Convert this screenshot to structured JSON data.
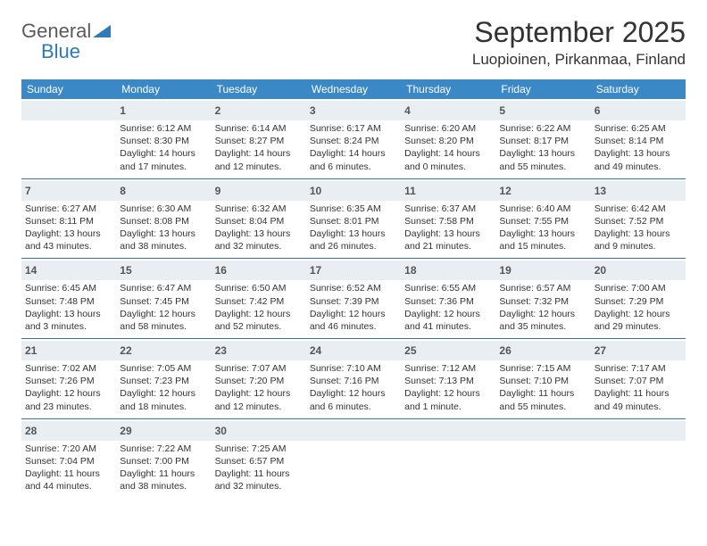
{
  "logo": {
    "word1": "General",
    "word2": "Blue"
  },
  "title": "September 2025",
  "location": "Luopioinen, Pirkanmaa, Finland",
  "colors": {
    "header_bg": "#3a88c6",
    "header_text": "#ffffff",
    "daynum_bg": "#e9eef2",
    "rule": "#3a6fa0",
    "logo_gray": "#5a5a5a",
    "logo_blue": "#2e79b8"
  },
  "weekdays": [
    "Sunday",
    "Monday",
    "Tuesday",
    "Wednesday",
    "Thursday",
    "Friday",
    "Saturday"
  ],
  "weeks": [
    [
      null,
      {
        "n": "1",
        "sr": "Sunrise: 6:12 AM",
        "ss": "Sunset: 8:30 PM",
        "d1": "Daylight: 14 hours",
        "d2": "and 17 minutes."
      },
      {
        "n": "2",
        "sr": "Sunrise: 6:14 AM",
        "ss": "Sunset: 8:27 PM",
        "d1": "Daylight: 14 hours",
        "d2": "and 12 minutes."
      },
      {
        "n": "3",
        "sr": "Sunrise: 6:17 AM",
        "ss": "Sunset: 8:24 PM",
        "d1": "Daylight: 14 hours",
        "d2": "and 6 minutes."
      },
      {
        "n": "4",
        "sr": "Sunrise: 6:20 AM",
        "ss": "Sunset: 8:20 PM",
        "d1": "Daylight: 14 hours",
        "d2": "and 0 minutes."
      },
      {
        "n": "5",
        "sr": "Sunrise: 6:22 AM",
        "ss": "Sunset: 8:17 PM",
        "d1": "Daylight: 13 hours",
        "d2": "and 55 minutes."
      },
      {
        "n": "6",
        "sr": "Sunrise: 6:25 AM",
        "ss": "Sunset: 8:14 PM",
        "d1": "Daylight: 13 hours",
        "d2": "and 49 minutes."
      }
    ],
    [
      {
        "n": "7",
        "sr": "Sunrise: 6:27 AM",
        "ss": "Sunset: 8:11 PM",
        "d1": "Daylight: 13 hours",
        "d2": "and 43 minutes."
      },
      {
        "n": "8",
        "sr": "Sunrise: 6:30 AM",
        "ss": "Sunset: 8:08 PM",
        "d1": "Daylight: 13 hours",
        "d2": "and 38 minutes."
      },
      {
        "n": "9",
        "sr": "Sunrise: 6:32 AM",
        "ss": "Sunset: 8:04 PM",
        "d1": "Daylight: 13 hours",
        "d2": "and 32 minutes."
      },
      {
        "n": "10",
        "sr": "Sunrise: 6:35 AM",
        "ss": "Sunset: 8:01 PM",
        "d1": "Daylight: 13 hours",
        "d2": "and 26 minutes."
      },
      {
        "n": "11",
        "sr": "Sunrise: 6:37 AM",
        "ss": "Sunset: 7:58 PM",
        "d1": "Daylight: 13 hours",
        "d2": "and 21 minutes."
      },
      {
        "n": "12",
        "sr": "Sunrise: 6:40 AM",
        "ss": "Sunset: 7:55 PM",
        "d1": "Daylight: 13 hours",
        "d2": "and 15 minutes."
      },
      {
        "n": "13",
        "sr": "Sunrise: 6:42 AM",
        "ss": "Sunset: 7:52 PM",
        "d1": "Daylight: 13 hours",
        "d2": "and 9 minutes."
      }
    ],
    [
      {
        "n": "14",
        "sr": "Sunrise: 6:45 AM",
        "ss": "Sunset: 7:48 PM",
        "d1": "Daylight: 13 hours",
        "d2": "and 3 minutes."
      },
      {
        "n": "15",
        "sr": "Sunrise: 6:47 AM",
        "ss": "Sunset: 7:45 PM",
        "d1": "Daylight: 12 hours",
        "d2": "and 58 minutes."
      },
      {
        "n": "16",
        "sr": "Sunrise: 6:50 AM",
        "ss": "Sunset: 7:42 PM",
        "d1": "Daylight: 12 hours",
        "d2": "and 52 minutes."
      },
      {
        "n": "17",
        "sr": "Sunrise: 6:52 AM",
        "ss": "Sunset: 7:39 PM",
        "d1": "Daylight: 12 hours",
        "d2": "and 46 minutes."
      },
      {
        "n": "18",
        "sr": "Sunrise: 6:55 AM",
        "ss": "Sunset: 7:36 PM",
        "d1": "Daylight: 12 hours",
        "d2": "and 41 minutes."
      },
      {
        "n": "19",
        "sr": "Sunrise: 6:57 AM",
        "ss": "Sunset: 7:32 PM",
        "d1": "Daylight: 12 hours",
        "d2": "and 35 minutes."
      },
      {
        "n": "20",
        "sr": "Sunrise: 7:00 AM",
        "ss": "Sunset: 7:29 PM",
        "d1": "Daylight: 12 hours",
        "d2": "and 29 minutes."
      }
    ],
    [
      {
        "n": "21",
        "sr": "Sunrise: 7:02 AM",
        "ss": "Sunset: 7:26 PM",
        "d1": "Daylight: 12 hours",
        "d2": "and 23 minutes."
      },
      {
        "n": "22",
        "sr": "Sunrise: 7:05 AM",
        "ss": "Sunset: 7:23 PM",
        "d1": "Daylight: 12 hours",
        "d2": "and 18 minutes."
      },
      {
        "n": "23",
        "sr": "Sunrise: 7:07 AM",
        "ss": "Sunset: 7:20 PM",
        "d1": "Daylight: 12 hours",
        "d2": "and 12 minutes."
      },
      {
        "n": "24",
        "sr": "Sunrise: 7:10 AM",
        "ss": "Sunset: 7:16 PM",
        "d1": "Daylight: 12 hours",
        "d2": "and 6 minutes."
      },
      {
        "n": "25",
        "sr": "Sunrise: 7:12 AM",
        "ss": "Sunset: 7:13 PM",
        "d1": "Daylight: 12 hours",
        "d2": "and 1 minute."
      },
      {
        "n": "26",
        "sr": "Sunrise: 7:15 AM",
        "ss": "Sunset: 7:10 PM",
        "d1": "Daylight: 11 hours",
        "d2": "and 55 minutes."
      },
      {
        "n": "27",
        "sr": "Sunrise: 7:17 AM",
        "ss": "Sunset: 7:07 PM",
        "d1": "Daylight: 11 hours",
        "d2": "and 49 minutes."
      }
    ],
    [
      {
        "n": "28",
        "sr": "Sunrise: 7:20 AM",
        "ss": "Sunset: 7:04 PM",
        "d1": "Daylight: 11 hours",
        "d2": "and 44 minutes."
      },
      {
        "n": "29",
        "sr": "Sunrise: 7:22 AM",
        "ss": "Sunset: 7:00 PM",
        "d1": "Daylight: 11 hours",
        "d2": "and 38 minutes."
      },
      {
        "n": "30",
        "sr": "Sunrise: 7:25 AM",
        "ss": "Sunset: 6:57 PM",
        "d1": "Daylight: 11 hours",
        "d2": "and 32 minutes."
      },
      null,
      null,
      null,
      null
    ]
  ]
}
